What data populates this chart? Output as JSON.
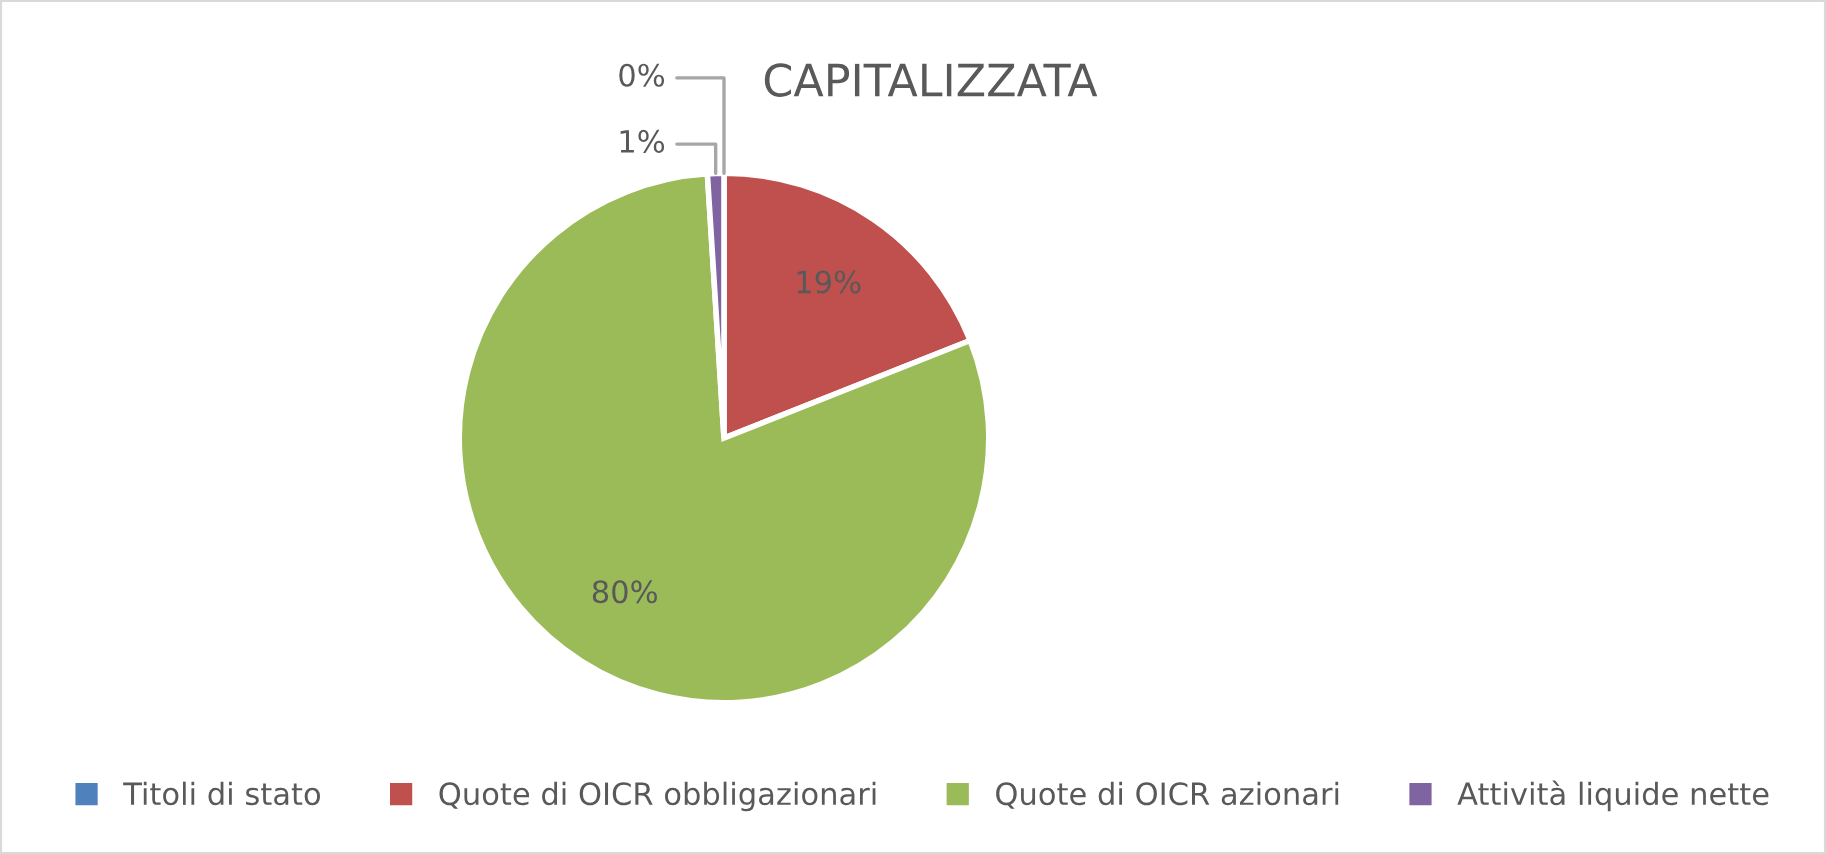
{
  "chart_data": {
    "type": "pie",
    "title": "CAPITALIZZATA",
    "categories": [
      "Titoli di stato",
      "Quote di OICR obbligazionari",
      "Quote di OICR azionari",
      "Attività liquide nette"
    ],
    "values": [
      0,
      19,
      80,
      1
    ],
    "colors": [
      "#4f81bd",
      "#c0504d",
      "#9bbb59",
      "#8064a2"
    ],
    "value_labels": [
      "0%",
      "19%",
      "80%",
      "1%"
    ],
    "legend": "bottom"
  }
}
